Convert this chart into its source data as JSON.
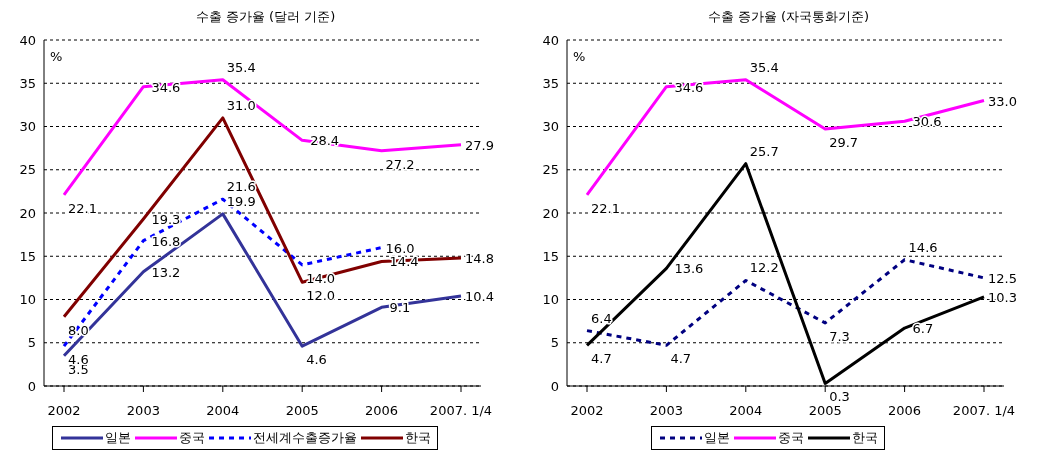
{
  "chart_data": [
    {
      "type": "line",
      "title": "수출 증가율 (달러 기준)",
      "ylabel": "%",
      "categories": [
        "2002",
        "2003",
        "2004",
        "2005",
        "2006",
        "2007. 1/4"
      ],
      "ylim": [
        0,
        40
      ],
      "yticks": [
        0,
        5,
        10,
        15,
        20,
        25,
        30,
        35,
        40
      ],
      "grid": "y",
      "legend": "bottom",
      "marker": "none",
      "series": [
        {
          "name": "일본",
          "color": "#333399",
          "line_style": "solid",
          "values": [
            3.5,
            13.2,
            19.9,
            4.6,
            9.1,
            10.4
          ],
          "value_labels": [
            "3.5",
            "13.2",
            "19.9",
            "4.6",
            "9.1",
            "10.4"
          ]
        },
        {
          "name": "중국",
          "color": "#ff00ff",
          "line_style": "solid",
          "values": [
            22.1,
            34.6,
            35.4,
            28.4,
            27.2,
            27.9
          ],
          "value_labels": [
            "22.1",
            "34.6",
            "35.4",
            "28.4",
            "27.2",
            "27.9"
          ]
        },
        {
          "name": "전세계수출증가율",
          "color": "#0000ff",
          "line_style": "dashed",
          "values": [
            4.6,
            16.8,
            21.6,
            14.0,
            16.0,
            null
          ],
          "value_labels": [
            "4.6",
            "16.8",
            "21.6",
            "14.0",
            "16.0",
            null
          ]
        },
        {
          "name": "한국",
          "color": "#800000",
          "line_style": "solid",
          "values": [
            8.0,
            19.3,
            31.0,
            12.0,
            14.4,
            14.8
          ],
          "value_labels": [
            "8.0",
            "19.3",
            "31.0",
            "12.0",
            "14.4",
            "14.8"
          ]
        }
      ]
    },
    {
      "type": "line",
      "title": "수출 증가율 (자국통화기준)",
      "ylabel": "%",
      "categories": [
        "2002",
        "2003",
        "2004",
        "2005",
        "2006",
        "2007. 1/4"
      ],
      "ylim": [
        0,
        40
      ],
      "yticks": [
        0,
        5,
        10,
        15,
        20,
        25,
        30,
        35,
        40
      ],
      "grid": "y",
      "legend": "bottom",
      "marker": "none",
      "series": [
        {
          "name": "일본",
          "color": "#000080",
          "line_style": "dashed",
          "values": [
            6.4,
            4.7,
            12.2,
            7.3,
            14.6,
            12.5
          ],
          "value_labels": [
            "6.4",
            "4.7",
            "12.2",
            "7.3",
            "14.6",
            "12.5"
          ]
        },
        {
          "name": "중국",
          "color": "#ff00ff",
          "line_style": "solid",
          "values": [
            22.1,
            34.6,
            35.4,
            29.7,
            30.6,
            33.0
          ],
          "value_labels": [
            "22.1",
            "34.6",
            "35.4",
            "29.7",
            "30.6",
            "33.0"
          ]
        },
        {
          "name": "한국",
          "color": "#000000",
          "line_style": "solid",
          "values": [
            4.7,
            13.6,
            25.7,
            0.3,
            6.7,
            10.3
          ],
          "value_labels": [
            "4.7",
            "13.6",
            "25.7",
            "0.3",
            "6.7",
            "10.3"
          ]
        }
      ]
    }
  ]
}
